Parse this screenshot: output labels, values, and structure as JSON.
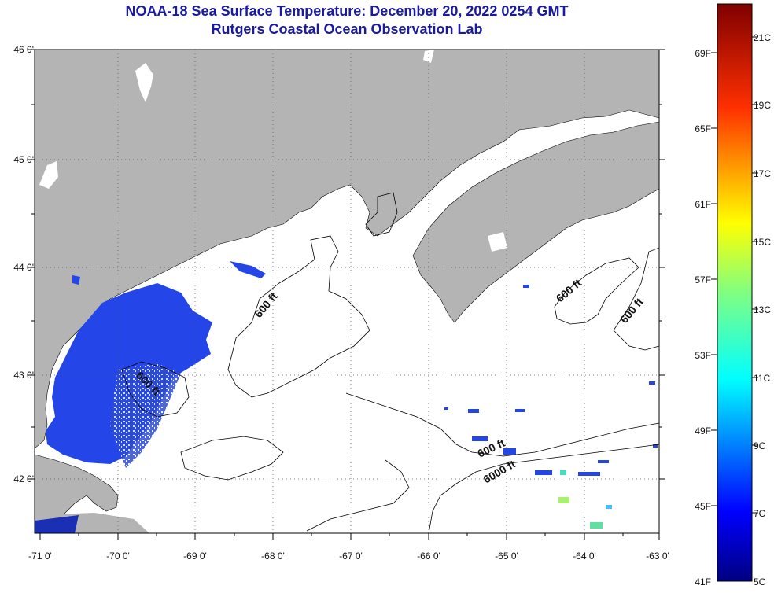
{
  "title_line1": "NOAA-18 Sea Surface Temperature:  December 20, 2022 0254 GMT",
  "title_line2": "Rutgers Coastal Ocean Observation Lab",
  "map": {
    "lon_labels": [
      "-71 0'",
      "-70 0'",
      "-69 0'",
      "-68 0'",
      "-67 0'",
      "-66 0'",
      "-65 0'",
      "-64 0'",
      "-63 0'"
    ],
    "lat_labels": [
      "46 0'",
      "45 0'",
      "44 0'",
      "43 0'",
      "42 0'"
    ],
    "contour_labels": [
      "600 ft",
      "600 ft",
      "600 ft",
      "600 ft",
      "600 ft",
      "6000 ft"
    ],
    "colors": {
      "land": "#b4b4b4",
      "ocean": "#ffffff",
      "sst_main": "#2446e8",
      "sst_dark": "#1a2fb4"
    }
  },
  "colorbar": {
    "fahrenheit": [
      "69F",
      "65F",
      "61F",
      "57F",
      "53F",
      "49F",
      "45F",
      "41F"
    ],
    "celsius": [
      "21C",
      "19C",
      "17C",
      "15C",
      "13C",
      "11C",
      "9C",
      "7C",
      "5C"
    ]
  }
}
